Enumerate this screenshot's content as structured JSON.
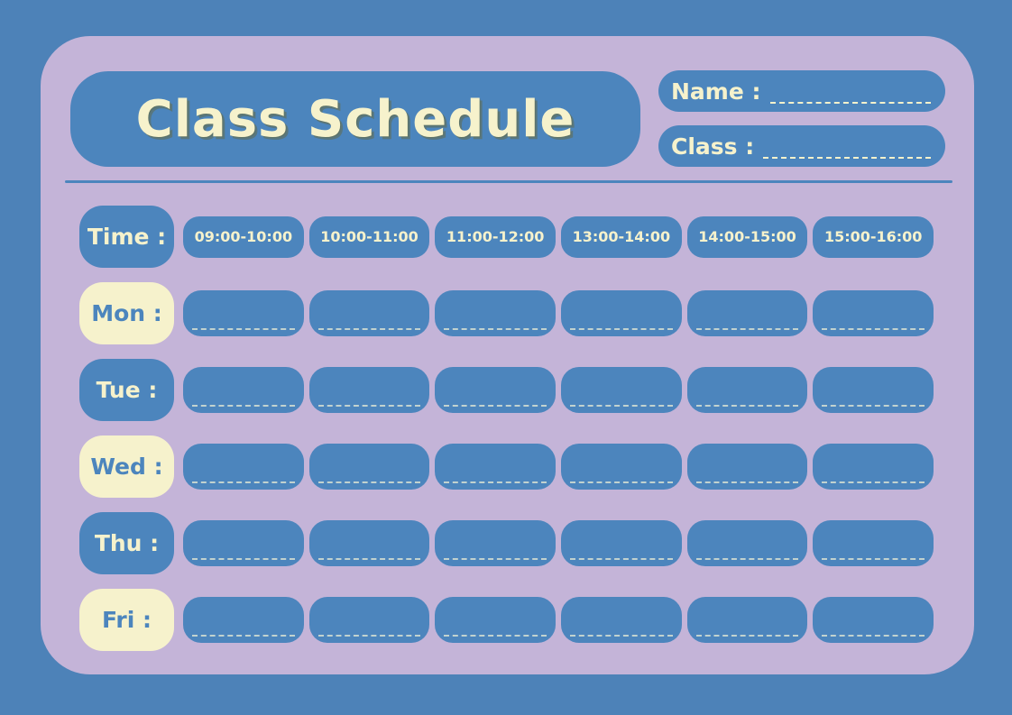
{
  "header": {
    "title": "Class Schedule",
    "name_label": "Name :",
    "class_label": "Class :"
  },
  "schedule": {
    "time_label": "Time :",
    "time_slots": [
      "09:00-10:00",
      "10:00-11:00",
      "11:00-12:00",
      "13:00-14:00",
      "14:00-15:00",
      "15:00-16:00"
    ],
    "days": [
      {
        "label": "Mon :",
        "variant": "cream"
      },
      {
        "label": "Tue :",
        "variant": "blue"
      },
      {
        "label": "Wed :",
        "variant": "cream"
      },
      {
        "label": "Thu :",
        "variant": "blue"
      },
      {
        "label": "Fri :",
        "variant": "cream"
      }
    ]
  },
  "colors": {
    "background_blue": "#4d82b8",
    "box_blue": "#4c85bd",
    "card_lavender": "#c4b4d8",
    "cream": "#f6f2cc",
    "title_shadow_olive": "#646a42"
  }
}
